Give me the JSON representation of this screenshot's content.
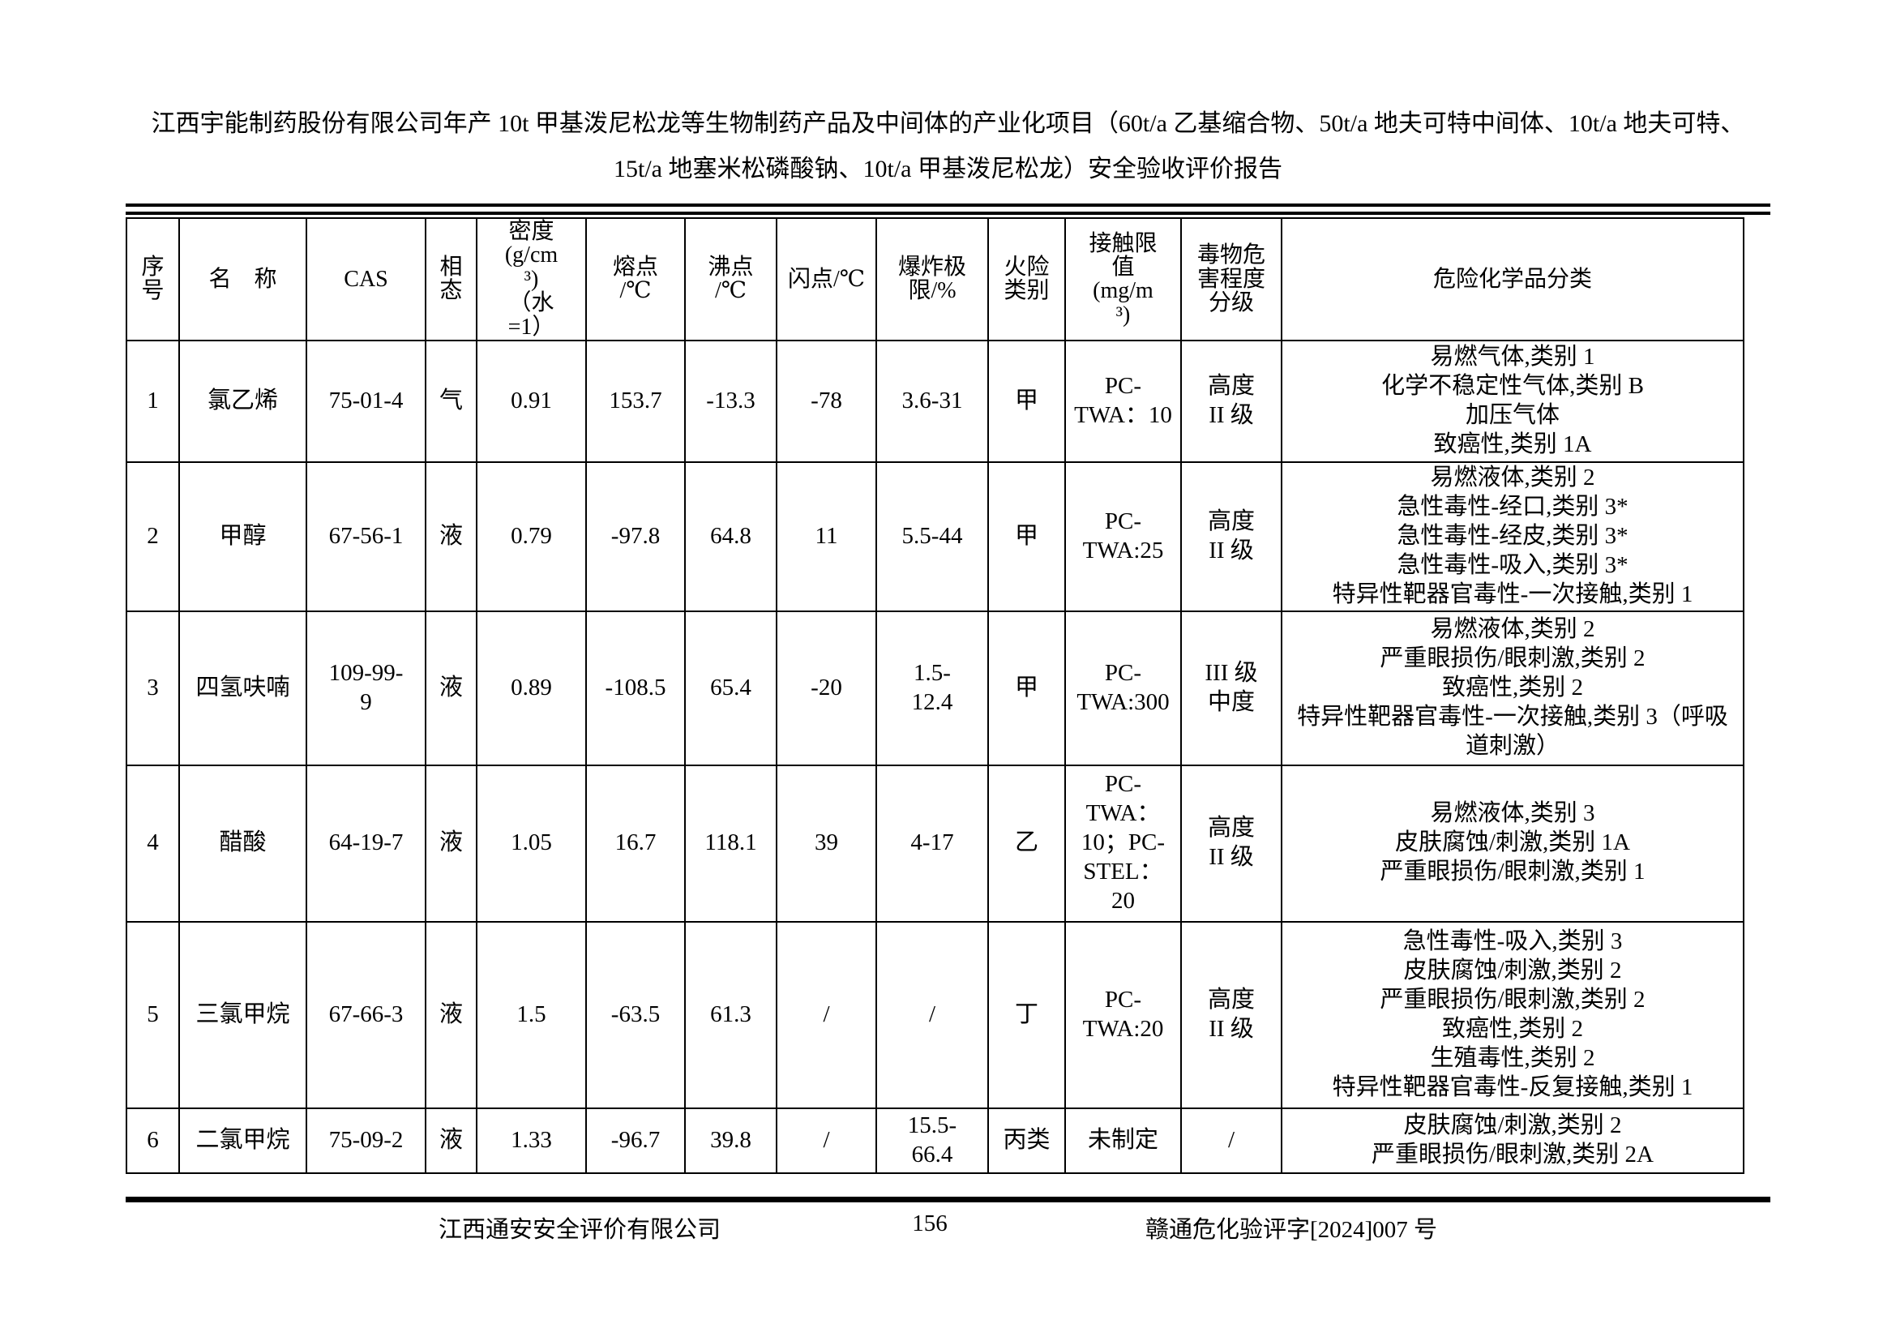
{
  "title": {
    "line1": "江西宇能制药股份有限公司年产 10t 甲基泼尼松龙等生物制药产品及中间体的产业化项目（60t/a 乙基缩合物、50t/a 地夫可特中间体、10t/a 地夫可特、",
    "line2": "15t/a 地塞米松磷酸钠、10t/a 甲基泼尼松龙）安全验收评价报告"
  },
  "table": {
    "headers": [
      "序\n号",
      "名　称",
      "CAS",
      "相\n态",
      "密度\n(g/cm\n³)\n（水\n=1）",
      "熔点\n/℃",
      "沸点\n/℃",
      "闪点/℃",
      "爆炸极\n限/%",
      "火险\n类别",
      "接触限\n值\n(mg/m\n³)",
      "毒物危\n害程度\n分级",
      "危险化学品分类"
    ],
    "rows": [
      {
        "no": "1",
        "name": "氯乙烯",
        "cas": "75-01-4",
        "phase": "气",
        "density": "0.91",
        "melting_point": "153.7",
        "boiling_point": "-13.3",
        "flash_point": "-78",
        "explosion_limit": "3.6-31",
        "fire_class": "甲",
        "exposure_limit": "PC-\nTWA：10",
        "toxic_grade": "高度\nII 级",
        "classification": "易燃气体,类别 1\n化学不稳定性气体,类别 B\n加压气体\n致癌性,类别 1A"
      },
      {
        "no": "2",
        "name": "甲醇",
        "cas": "67-56-1",
        "phase": "液",
        "density": "0.79",
        "melting_point": "-97.8",
        "boiling_point": "64.8",
        "flash_point": "11",
        "explosion_limit": "5.5-44",
        "fire_class": "甲",
        "exposure_limit": "PC-\nTWA:25",
        "toxic_grade": "高度\nII 级",
        "classification": "易燃液体,类别 2\n急性毒性-经口,类别 3*\n急性毒性-经皮,类别 3*\n急性毒性-吸入,类别 3*\n特异性靶器官毒性-一次接触,类别 1"
      },
      {
        "no": "3",
        "name": "四氢呋喃",
        "cas": "109-99-\n9",
        "phase": "液",
        "density": "0.89",
        "melting_point": "-108.5",
        "boiling_point": "65.4",
        "flash_point": "-20",
        "explosion_limit": "1.5-\n12.4",
        "fire_class": "甲",
        "exposure_limit": "PC-\nTWA:300",
        "toxic_grade": "III 级\n中度",
        "classification": "易燃液体,类别 2\n严重眼损伤/眼刺激,类别 2\n致癌性,类别 2\n特异性靶器官毒性-一次接触,类别 3（呼吸道刺激）"
      },
      {
        "no": "4",
        "name": "醋酸",
        "cas": "64-19-7",
        "phase": "液",
        "density": "1.05",
        "melting_point": "16.7",
        "boiling_point": "118.1",
        "flash_point": "39",
        "explosion_limit": "4-17",
        "fire_class": "乙",
        "exposure_limit": "PC-\nTWA：\n10；PC-\nSTEL：\n20",
        "toxic_grade": "高度\nII 级",
        "classification": "易燃液体,类别 3\n皮肤腐蚀/刺激,类别 1A\n严重眼损伤/眼刺激,类别 1"
      },
      {
        "no": "5",
        "name": "三氯甲烷",
        "cas": "67-66-3",
        "phase": "液",
        "density": "1.5",
        "melting_point": "-63.5",
        "boiling_point": "61.3",
        "flash_point": "/",
        "explosion_limit": "/",
        "fire_class": "丁",
        "exposure_limit": "PC-\nTWA:20",
        "toxic_grade": "高度\nII 级",
        "classification": "急性毒性-吸入,类别 3\n皮肤腐蚀/刺激,类别 2\n严重眼损伤/眼刺激,类别 2\n致癌性,类别 2\n生殖毒性,类别 2\n特异性靶器官毒性-反复接触,类别 1"
      },
      {
        "no": "6",
        "name": "二氯甲烷",
        "cas": "75-09-2",
        "phase": "液",
        "density": "1.33",
        "melting_point": "-96.7",
        "boiling_point": "39.8",
        "flash_point": "/",
        "explosion_limit": "15.5-\n66.4",
        "fire_class": "丙类",
        "exposure_limit": "未制定",
        "toxic_grade": "/",
        "classification": "皮肤腐蚀/刺激,类别 2\n严重眼损伤/眼刺激,类别 2A"
      }
    ]
  },
  "footer": {
    "company": "江西通安安全评价有限公司",
    "page": "156",
    "doc_no": "赣通危化验评字[2024]007 号"
  }
}
